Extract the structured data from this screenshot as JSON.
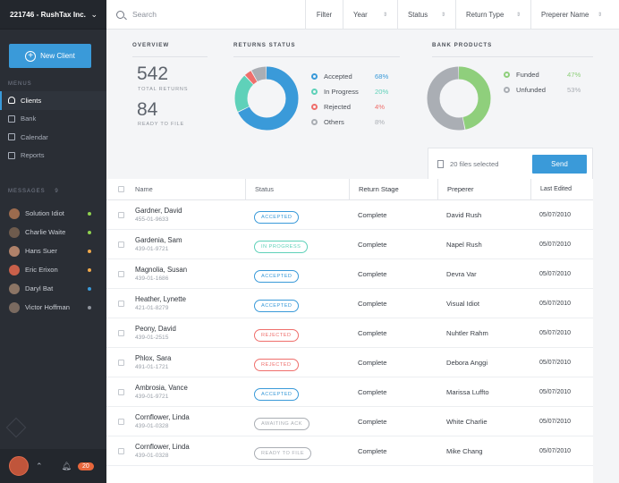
{
  "org": {
    "title": "221746 - RushTax Inc."
  },
  "sidebar": {
    "new_client_label": "New Client",
    "menus_label": "MENUS",
    "messages_label": "MESSAGES",
    "messages_count": "9",
    "nav": [
      "Clients",
      "Bank",
      "Calendar",
      "Reports"
    ],
    "messages": [
      {
        "name": "Solution Idiot",
        "dot": "#8fd14f"
      },
      {
        "name": "Charlie Waite",
        "dot": "#8fd14f"
      },
      {
        "name": "Hans Suer",
        "dot": "#f0a94b"
      },
      {
        "name": "Eric Erixon",
        "dot": "#f0a94b"
      },
      {
        "name": "Daryl Bat",
        "dot": "#3a9ad9"
      },
      {
        "name": "Victor Hoffman",
        "dot": "#8e939b"
      }
    ],
    "notifications": "20"
  },
  "topbar": {
    "search_placeholder": "Search",
    "filter": "Filter",
    "year": "Year",
    "status": "Status",
    "return_type": "Return Type",
    "preparer": "Preperer Name"
  },
  "overview": {
    "label": "OVERVIEW",
    "total_returns": "542",
    "total_returns_label": "TOTAL RETURNS",
    "ready": "84",
    "ready_label": "READY TO FILE"
  },
  "returns_status": {
    "label": "RETURNS STATUS",
    "items": [
      {
        "name": "Accepted",
        "pct": "68%",
        "value": 68,
        "color": "#3a9ad9"
      },
      {
        "name": "In Progress",
        "pct": "20%",
        "value": 20,
        "color": "#5fd1b9"
      },
      {
        "name": "Rejected",
        "pct": "4%",
        "value": 4,
        "color": "#ef6f6c"
      },
      {
        "name": "Others",
        "pct": "8%",
        "value": 8,
        "color": "#aaaeb4"
      }
    ]
  },
  "bank_products": {
    "label": "BANK PRODUCTS",
    "items": [
      {
        "name": "Funded",
        "pct": "47%",
        "value": 47,
        "color": "#8fcf7c"
      },
      {
        "name": "Unfunded",
        "pct": "53%",
        "value": 53,
        "color": "#aaaeb4"
      }
    ]
  },
  "sendbar": {
    "selected": "20 files selected",
    "send": "Send"
  },
  "table": {
    "headers": {
      "name": "Name",
      "status": "Status",
      "stage": "Return Stage",
      "preparer": "Preperer",
      "edited": "Last Edited"
    },
    "rows": [
      {
        "name": "Gardner, David",
        "id": "455-01-9633",
        "status": "ACCEPTED",
        "kind": "accepted",
        "stage": "Complete",
        "preparer": "David Rush",
        "date": "05/07/2010"
      },
      {
        "name": "Gardenia, Sam",
        "id": "439-01-9721",
        "status": "IN PROGRESS",
        "kind": "progress",
        "stage": "Complete",
        "preparer": "Napel Rush",
        "date": "05/07/2010"
      },
      {
        "name": "Magnolia, Susan",
        "id": "439-01-1686",
        "status": "ACCEPTED",
        "kind": "accepted",
        "stage": "Complete",
        "preparer": "Devra Var",
        "date": "05/07/2010"
      },
      {
        "name": "Heather, Lynette",
        "id": "421-01-8279",
        "status": "ACCEPTED",
        "kind": "accepted",
        "stage": "Complete",
        "preparer": "Visual Idiot",
        "date": "05/07/2010"
      },
      {
        "name": "Peony, David",
        "id": "439-01-2515",
        "status": "REJECTED",
        "kind": "rejected",
        "stage": "Complete",
        "preparer": "Nuhtler Rahm",
        "date": "05/07/2010"
      },
      {
        "name": "Phlox, Sara",
        "id": "491-01-1721",
        "status": "REJECTED",
        "kind": "rejected",
        "stage": "Complete",
        "preparer": "Debora Anggi",
        "date": "05/07/2010"
      },
      {
        "name": "Ambrosia, Vance",
        "id": "439-01-9721",
        "status": "ACCEPTED",
        "kind": "accepted",
        "stage": "Complete",
        "preparer": "Marissa Luffto",
        "date": "05/07/2010"
      },
      {
        "name": "Cornflower, Linda",
        "id": "439-01-0328",
        "status": "AWAITING ACK",
        "kind": "await",
        "stage": "Complete",
        "preparer": "White Charlie",
        "date": "05/07/2010"
      },
      {
        "name": "Cornflower, Linda",
        "id": "439-01-0328",
        "status": "READY TO FILE",
        "kind": "ready",
        "stage": "Complete",
        "preparer": "Mike Chang",
        "date": "05/07/2010"
      }
    ]
  },
  "pill_colors": {
    "accepted": "#3a9ad9",
    "progress": "#5fd1b9",
    "rejected": "#ef6f6c",
    "await": "#aaaeb4",
    "ready": "#aaaeb4"
  }
}
